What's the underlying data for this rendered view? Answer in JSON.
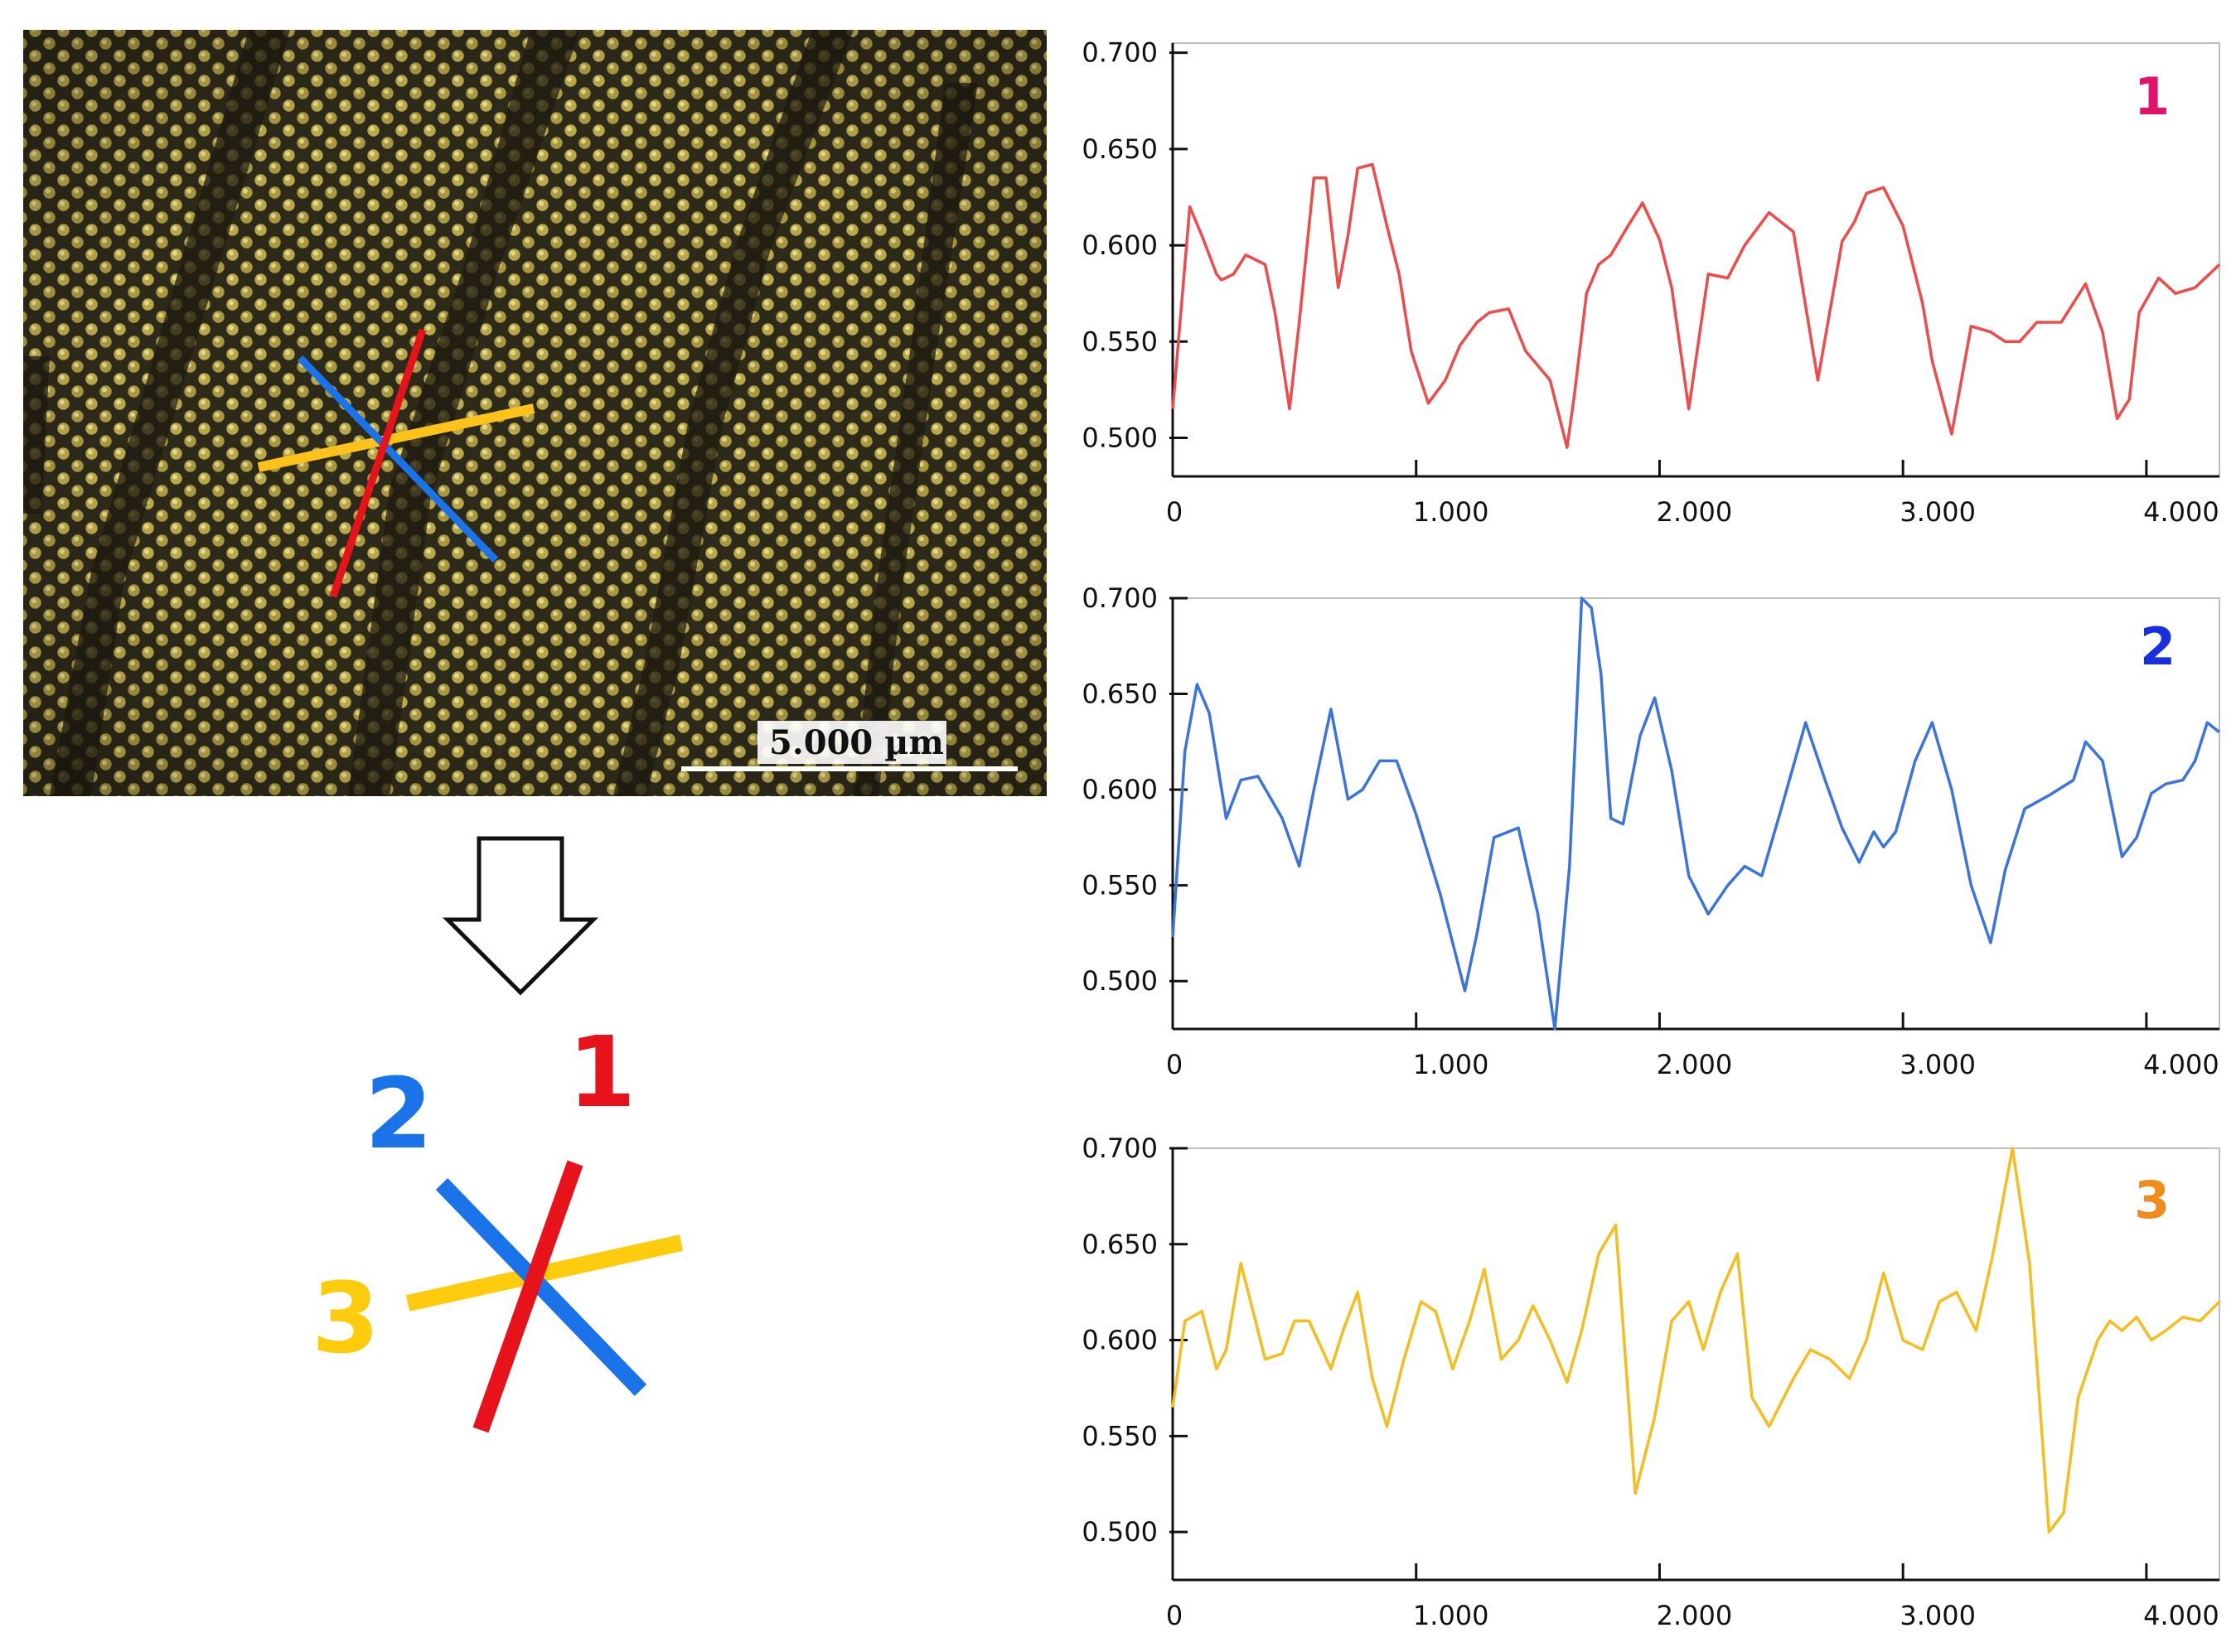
{
  "micrograph": {
    "scale_bar_label": "5.000 µm"
  },
  "legend": {
    "labels": [
      "1",
      "2",
      "3"
    ],
    "colors": [
      "#e8121a",
      "#1a73e8",
      "#ffcc0d"
    ]
  },
  "chart_data": [
    {
      "type": "line",
      "label": "1",
      "label_color": "#e0126a",
      "line_color": "#f04a4a",
      "xlim": [
        0,
        4.3
      ],
      "ylim": [
        0.48,
        0.705
      ],
      "x_ticks": [
        0,
        1.0,
        2.0,
        3.0,
        4.0
      ],
      "x_tick_labels": [
        "0",
        "1.000",
        "2.000",
        "3.000",
        "4.000"
      ],
      "y_ticks": [
        0.5,
        0.55,
        0.6,
        0.65,
        0.7
      ],
      "y_tick_labels": [
        "0.500",
        "0.550",
        "0.600",
        "0.650",
        "0.700"
      ],
      "x": [
        0.0,
        0.07,
        0.12,
        0.18,
        0.2,
        0.25,
        0.3,
        0.38,
        0.42,
        0.48,
        0.52,
        0.58,
        0.63,
        0.68,
        0.72,
        0.76,
        0.82,
        0.88,
        0.93,
        0.98,
        1.05,
        1.12,
        1.18,
        1.25,
        1.3,
        1.38,
        1.45,
        1.55,
        1.62,
        1.65,
        1.7,
        1.75,
        1.8,
        1.87,
        1.93,
        2.0,
        2.05,
        2.12,
        2.2,
        2.28,
        2.35,
        2.45,
        2.55,
        2.65,
        2.75,
        2.8,
        2.85,
        2.92,
        3.0,
        3.08,
        3.12,
        3.2,
        3.28,
        3.36,
        3.42,
        3.48,
        3.55,
        3.65,
        3.75,
        3.82,
        3.88,
        3.93,
        3.97,
        4.05,
        4.12,
        4.2,
        4.3
      ],
      "y": [
        0.515,
        0.62,
        0.605,
        0.585,
        0.582,
        0.585,
        0.595,
        0.59,
        0.565,
        0.515,
        0.56,
        0.635,
        0.635,
        0.578,
        0.605,
        0.64,
        0.642,
        0.61,
        0.585,
        0.545,
        0.518,
        0.53,
        0.548,
        0.56,
        0.565,
        0.567,
        0.545,
        0.53,
        0.495,
        0.522,
        0.575,
        0.59,
        0.595,
        0.61,
        0.622,
        0.603,
        0.578,
        0.515,
        0.585,
        0.583,
        0.6,
        0.617,
        0.607,
        0.53,
        0.602,
        0.612,
        0.627,
        0.63,
        0.61,
        0.57,
        0.54,
        0.502,
        0.558,
        0.555,
        0.55,
        0.55,
        0.56,
        0.56,
        0.58,
        0.555,
        0.51,
        0.52,
        0.565,
        0.583,
        0.575,
        0.578,
        0.59
      ]
    },
    {
      "type": "line",
      "label": "2",
      "label_color": "#1a2ee0",
      "line_color": "#3a74e0",
      "xlim": [
        0,
        4.3
      ],
      "ylim": [
        0.475,
        0.7
      ],
      "x_ticks": [
        0,
        1.0,
        2.0,
        3.0,
        4.0
      ],
      "x_tick_labels": [
        "0",
        "1.000",
        "2.000",
        "3.000",
        "4.000"
      ],
      "y_ticks": [
        0.5,
        0.55,
        0.6,
        0.65,
        0.7
      ],
      "y_tick_labels": [
        "0.500",
        "0.550",
        "0.600",
        "0.650",
        "0.700"
      ],
      "x": [
        0.0,
        0.05,
        0.1,
        0.15,
        0.22,
        0.28,
        0.35,
        0.45,
        0.52,
        0.58,
        0.65,
        0.72,
        0.78,
        0.85,
        0.92,
        1.0,
        1.1,
        1.2,
        1.25,
        1.32,
        1.42,
        1.5,
        1.57,
        1.63,
        1.68,
        1.72,
        1.76,
        1.8,
        1.85,
        1.92,
        1.98,
        2.05,
        2.12,
        2.2,
        2.28,
        2.35,
        2.42,
        2.5,
        2.6,
        2.68,
        2.75,
        2.82,
        2.88,
        2.92,
        2.97,
        3.05,
        3.12,
        3.2,
        3.28,
        3.36,
        3.42,
        3.5,
        3.6,
        3.7,
        3.75,
        3.82,
        3.9,
        3.96,
        4.02,
        4.08,
        4.15,
        4.2,
        4.25,
        4.3
      ],
      "y": [
        0.523,
        0.62,
        0.655,
        0.64,
        0.585,
        0.605,
        0.607,
        0.585,
        0.56,
        0.6,
        0.642,
        0.595,
        0.6,
        0.615,
        0.615,
        0.587,
        0.545,
        0.495,
        0.525,
        0.575,
        0.58,
        0.535,
        0.475,
        0.56,
        0.7,
        0.695,
        0.66,
        0.585,
        0.582,
        0.628,
        0.648,
        0.61,
        0.555,
        0.535,
        0.55,
        0.56,
        0.555,
        0.59,
        0.635,
        0.605,
        0.58,
        0.562,
        0.578,
        0.57,
        0.578,
        0.615,
        0.635,
        0.6,
        0.55,
        0.52,
        0.558,
        0.59,
        0.597,
        0.605,
        0.625,
        0.615,
        0.565,
        0.575,
        0.598,
        0.603,
        0.605,
        0.615,
        0.635,
        0.63
      ]
    },
    {
      "type": "line",
      "label": "3",
      "label_color": "#f08c1a",
      "line_color": "#f5be1e",
      "xlim": [
        0,
        4.3
      ],
      "ylim": [
        0.475,
        0.7
      ],
      "x_ticks": [
        0,
        1.0,
        2.0,
        3.0,
        4.0
      ],
      "x_tick_labels": [
        "0",
        "1.000",
        "2.000",
        "3.000",
        "4.000"
      ],
      "y_ticks": [
        0.5,
        0.55,
        0.6,
        0.65,
        0.7
      ],
      "y_tick_labels": [
        "0.500",
        "0.550",
        "0.600",
        "0.650",
        "0.700"
      ],
      "x": [
        0.0,
        0.05,
        0.12,
        0.18,
        0.22,
        0.28,
        0.38,
        0.45,
        0.5,
        0.56,
        0.65,
        0.7,
        0.76,
        0.82,
        0.88,
        0.95,
        1.02,
        1.08,
        1.15,
        1.22,
        1.28,
        1.35,
        1.42,
        1.48,
        1.55,
        1.62,
        1.68,
        1.75,
        1.82,
        1.9,
        1.98,
        2.05,
        2.12,
        2.18,
        2.25,
        2.32,
        2.38,
        2.45,
        2.55,
        2.62,
        2.7,
        2.78,
        2.85,
        2.92,
        3.0,
        3.08,
        3.15,
        3.22,
        3.3,
        3.37,
        3.45,
        3.52,
        3.6,
        3.66,
        3.72,
        3.8,
        3.85,
        3.9,
        3.96,
        4.02,
        4.08,
        4.15,
        4.22,
        4.3
      ],
      "y": [
        0.565,
        0.61,
        0.615,
        0.585,
        0.595,
        0.64,
        0.59,
        0.593,
        0.61,
        0.61,
        0.585,
        0.605,
        0.625,
        0.58,
        0.555,
        0.59,
        0.62,
        0.615,
        0.585,
        0.61,
        0.637,
        0.59,
        0.6,
        0.618,
        0.6,
        0.578,
        0.605,
        0.645,
        0.66,
        0.52,
        0.56,
        0.61,
        0.62,
        0.595,
        0.625,
        0.645,
        0.57,
        0.555,
        0.58,
        0.595,
        0.59,
        0.58,
        0.6,
        0.635,
        0.6,
        0.595,
        0.62,
        0.625,
        0.605,
        0.645,
        0.7,
        0.64,
        0.5,
        0.51,
        0.57,
        0.6,
        0.61,
        0.605,
        0.612,
        0.6,
        0.605,
        0.612,
        0.61,
        0.62
      ]
    }
  ]
}
